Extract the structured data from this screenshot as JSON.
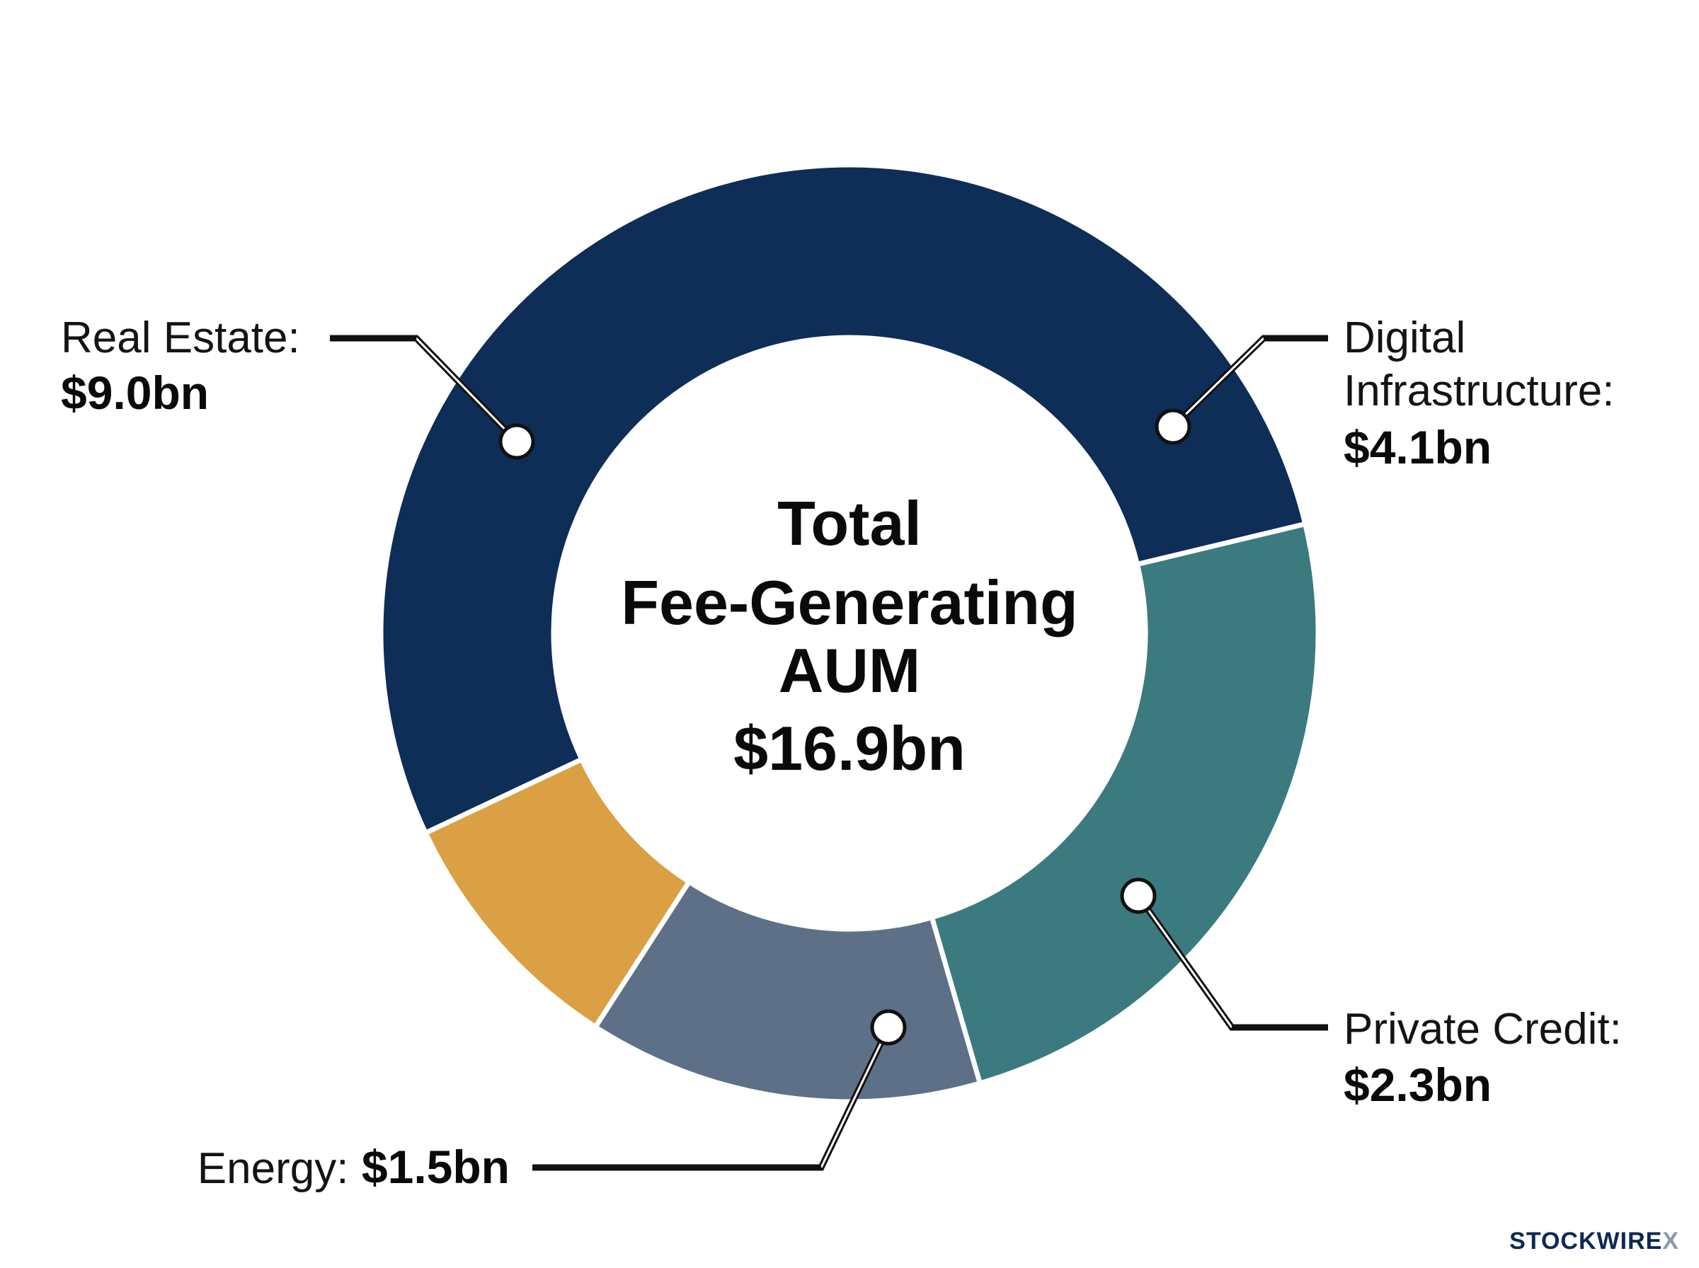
{
  "chart_data": {
    "type": "pie",
    "variant": "donut",
    "center_label": {
      "lines": [
        "Total",
        "Fee-Generating",
        "AUM"
      ],
      "value": "$16.9bn"
    },
    "total": 16.9,
    "unit": "$bn",
    "slices": [
      {
        "name": "Real Estate:",
        "value": 9.0,
        "value_label": "$9.0bn",
        "color": "#0e2d57"
      },
      {
        "name": "Digital Infrastructure:",
        "value": 4.1,
        "value_label": "$4.1bn",
        "color": "#3b7b80"
      },
      {
        "name": "Private Credit:",
        "value": 2.3,
        "value_label": "$2.3bn",
        "color": "#5e7087"
      },
      {
        "name": "Energy:",
        "value": 1.5,
        "value_label": "$1.5bn",
        "color": "#dba043"
      }
    ]
  },
  "brand": {
    "name": "STOCKWIRE",
    "mark": "X"
  }
}
